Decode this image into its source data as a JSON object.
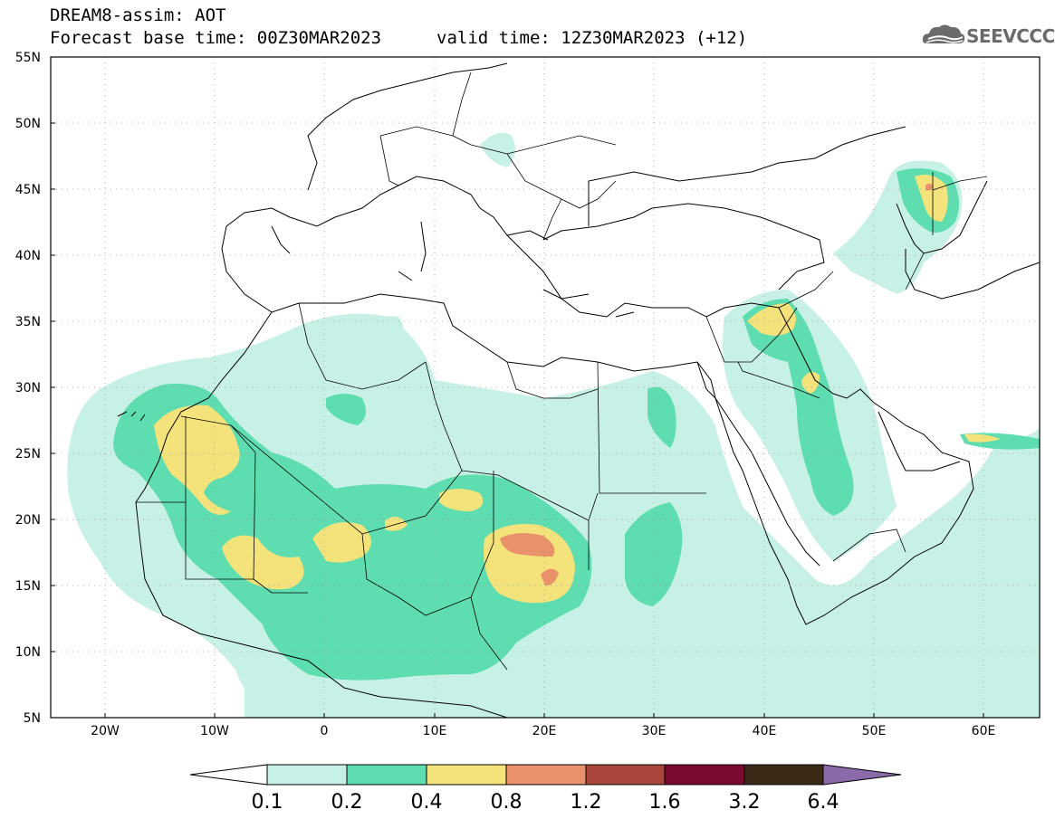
{
  "header": {
    "title": "DREAM8-assim: AOT",
    "base_time": "Forecast base time: 00Z30MAR2023",
    "valid_time": "valid time: 12Z30MAR2023 (+12)"
  },
  "logo": {
    "text": "SEEVCCC",
    "icon": "cloud-logo-icon"
  },
  "map": {
    "lat_labels": [
      "55N",
      "50N",
      "45N",
      "40N",
      "35N",
      "30N",
      "25N",
      "20N",
      "15N",
      "10N",
      "5N"
    ],
    "lon_labels": [
      "20W",
      "10W",
      "0",
      "10E",
      "20E",
      "30E",
      "40E",
      "50E",
      "60E"
    ]
  },
  "colors": {
    "c01": "#c7f0e6",
    "c02": "#5dddb0",
    "c04": "#f4e27a",
    "c08": "#e8916a",
    "c12": "#a9473c",
    "c16": "#7c0a2e",
    "c32": "#3c2a18",
    "c64": "#8a6aa8"
  },
  "colorbar": {
    "labels": [
      "0.1",
      "0.2",
      "0.4",
      "0.8",
      "1.2",
      "1.6",
      "3.2",
      "6.4"
    ]
  }
}
